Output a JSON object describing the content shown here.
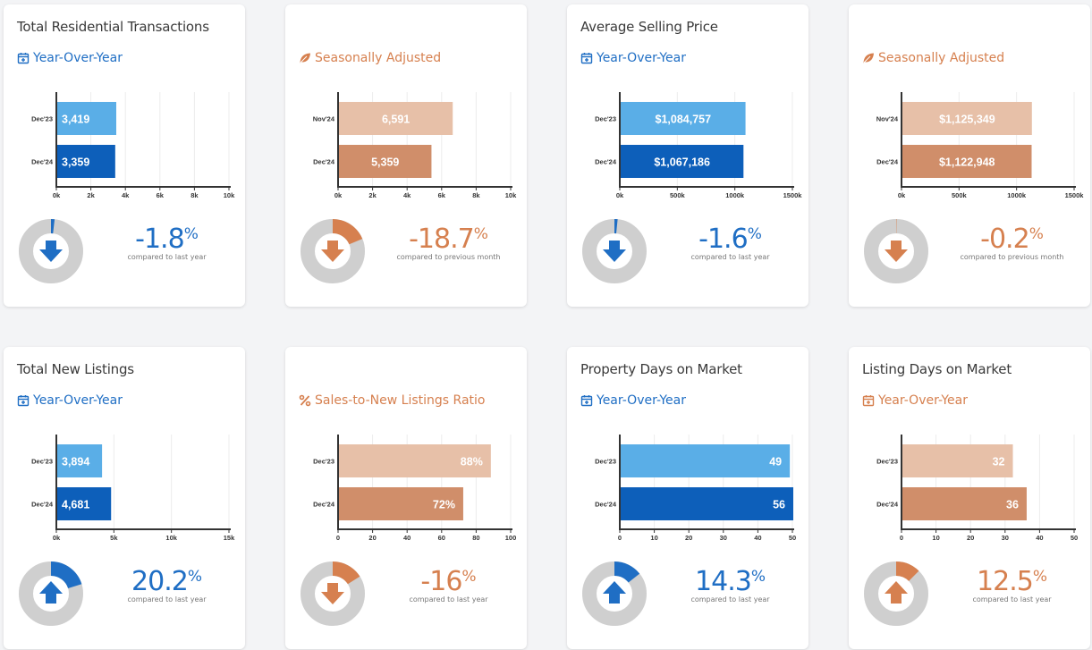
{
  "cards": [
    {
      "title": "Total Residential Transactions",
      "subtitle": "Year-Over-Year",
      "icon": "calendar-plus-icon",
      "theme": "blue",
      "chart_data": {
        "type": "bar",
        "orientation": "horizontal",
        "categories": [
          "Dec'23",
          "Dec'24"
        ],
        "values": [
          3419,
          3359
        ],
        "value_labels": [
          "3,419",
          "3,359"
        ],
        "ticks": [
          "0k",
          "2k",
          "4k",
          "6k",
          "8k",
          "10k"
        ],
        "xlim": [
          0,
          10000
        ]
      },
      "change": {
        "value": "-1.8",
        "symbol": "%",
        "direction": "down",
        "fraction": 0.018,
        "caption": "compared to last year"
      }
    },
    {
      "title": "",
      "subtitle": "Seasonally Adjusted",
      "icon": "leaf-icon",
      "theme": "orange",
      "chart_data": {
        "type": "bar",
        "orientation": "horizontal",
        "categories": [
          "Nov'24",
          "Dec'24"
        ],
        "values": [
          6591,
          5359
        ],
        "value_labels": [
          "6,591",
          "5,359"
        ],
        "ticks": [
          "0k",
          "2k",
          "4k",
          "6k",
          "8k",
          "10k"
        ],
        "xlim": [
          0,
          10000
        ]
      },
      "change": {
        "value": "-18.7",
        "symbol": "%",
        "direction": "down",
        "fraction": 0.187,
        "caption": "compared to previous month"
      }
    },
    {
      "title": "Average Selling Price",
      "subtitle": "Year-Over-Year",
      "icon": "calendar-plus-icon",
      "theme": "blue",
      "chart_data": {
        "type": "bar",
        "orientation": "horizontal",
        "categories": [
          "Dec'23",
          "Dec'24"
        ],
        "values": [
          1084757,
          1067186
        ],
        "value_labels": [
          "$1,084,757",
          "$1,067,186"
        ],
        "ticks": [
          "0k",
          "500k",
          "1000k",
          "1500k"
        ],
        "xlim": [
          0,
          1500000
        ]
      },
      "change": {
        "value": "-1.6",
        "symbol": "%",
        "direction": "down",
        "fraction": 0.016,
        "caption": "compared to last year"
      }
    },
    {
      "title": "",
      "subtitle": "Seasonally Adjusted",
      "icon": "leaf-icon",
      "theme": "orange",
      "chart_data": {
        "type": "bar",
        "orientation": "horizontal",
        "categories": [
          "Nov'24",
          "Dec'24"
        ],
        "values": [
          1125349,
          1122948
        ],
        "value_labels": [
          "$1,125,349",
          "$1,122,948"
        ],
        "ticks": [
          "0k",
          "500k",
          "1000k",
          "1500k"
        ],
        "xlim": [
          0,
          1500000
        ]
      },
      "change": {
        "value": "-0.2",
        "symbol": "%",
        "direction": "down",
        "fraction": 0.002,
        "caption": "compared to previous month"
      }
    },
    {
      "title": "Total New Listings",
      "subtitle": "Year-Over-Year",
      "icon": "calendar-plus-icon",
      "theme": "blue",
      "chart_data": {
        "type": "bar",
        "orientation": "horizontal",
        "categories": [
          "Dec'23",
          "Dec'24"
        ],
        "values": [
          3894,
          4681
        ],
        "value_labels": [
          "3,894",
          "4,681"
        ],
        "ticks": [
          "0k",
          "5k",
          "10k",
          "15k"
        ],
        "xlim": [
          0,
          15000
        ]
      },
      "change": {
        "value": "20.2",
        "symbol": "%",
        "direction": "up",
        "fraction": 0.202,
        "caption": "compared to last year"
      }
    },
    {
      "title": "",
      "subtitle": "Sales-to-New Listings Ratio",
      "icon": "percent-icon",
      "theme": "orange",
      "chart_data": {
        "type": "bar",
        "orientation": "horizontal",
        "categories": [
          "Dec'23",
          "Dec'24"
        ],
        "values": [
          88,
          72
        ],
        "value_labels": [
          "88%",
          "72%"
        ],
        "ticks": [
          "0",
          "20",
          "40",
          "60",
          "80",
          "100"
        ],
        "xlim": [
          0,
          100
        ]
      },
      "change": {
        "value": "-16",
        "symbol": "%",
        "direction": "down",
        "fraction": 0.16,
        "caption": "compared to last year"
      }
    },
    {
      "title": "Property Days on Market",
      "subtitle": "Year-Over-Year",
      "icon": "calendar-plus-icon",
      "theme": "blue",
      "chart_data": {
        "type": "bar",
        "orientation": "horizontal",
        "categories": [
          "Dec'23",
          "Dec'24"
        ],
        "values": [
          49,
          56
        ],
        "value_labels": [
          "49",
          "56"
        ],
        "ticks": [
          "0",
          "10",
          "20",
          "30",
          "40",
          "50"
        ],
        "xlim": [
          0,
          50
        ]
      },
      "change": {
        "value": "14.3",
        "symbol": "%",
        "direction": "up",
        "fraction": 0.143,
        "caption": "compared to last year"
      }
    },
    {
      "title": "Listing Days on Market",
      "subtitle": "Year-Over-Year",
      "icon": "calendar-plus-icon",
      "theme": "orange",
      "chart_data": {
        "type": "bar",
        "orientation": "horizontal",
        "categories": [
          "Dec'23",
          "Dec'24"
        ],
        "values": [
          32,
          36
        ],
        "value_labels": [
          "32",
          "36"
        ],
        "ticks": [
          "0",
          "10",
          "20",
          "30",
          "40",
          "50"
        ],
        "xlim": [
          0,
          50
        ]
      },
      "change": {
        "value": "12.5",
        "symbol": "%",
        "direction": "up",
        "fraction": 0.125,
        "caption": "compared to last year"
      }
    }
  ],
  "colors": {
    "blue": {
      "bar1": "#5aaee7",
      "bar2": "#0d5fba",
      "accent": "#1f6ec4"
    },
    "orange": {
      "bar1": "#e7c0a8",
      "bar2": "#d08e6a",
      "accent": "#d6804f"
    },
    "ring": "#cfcfcf"
  }
}
